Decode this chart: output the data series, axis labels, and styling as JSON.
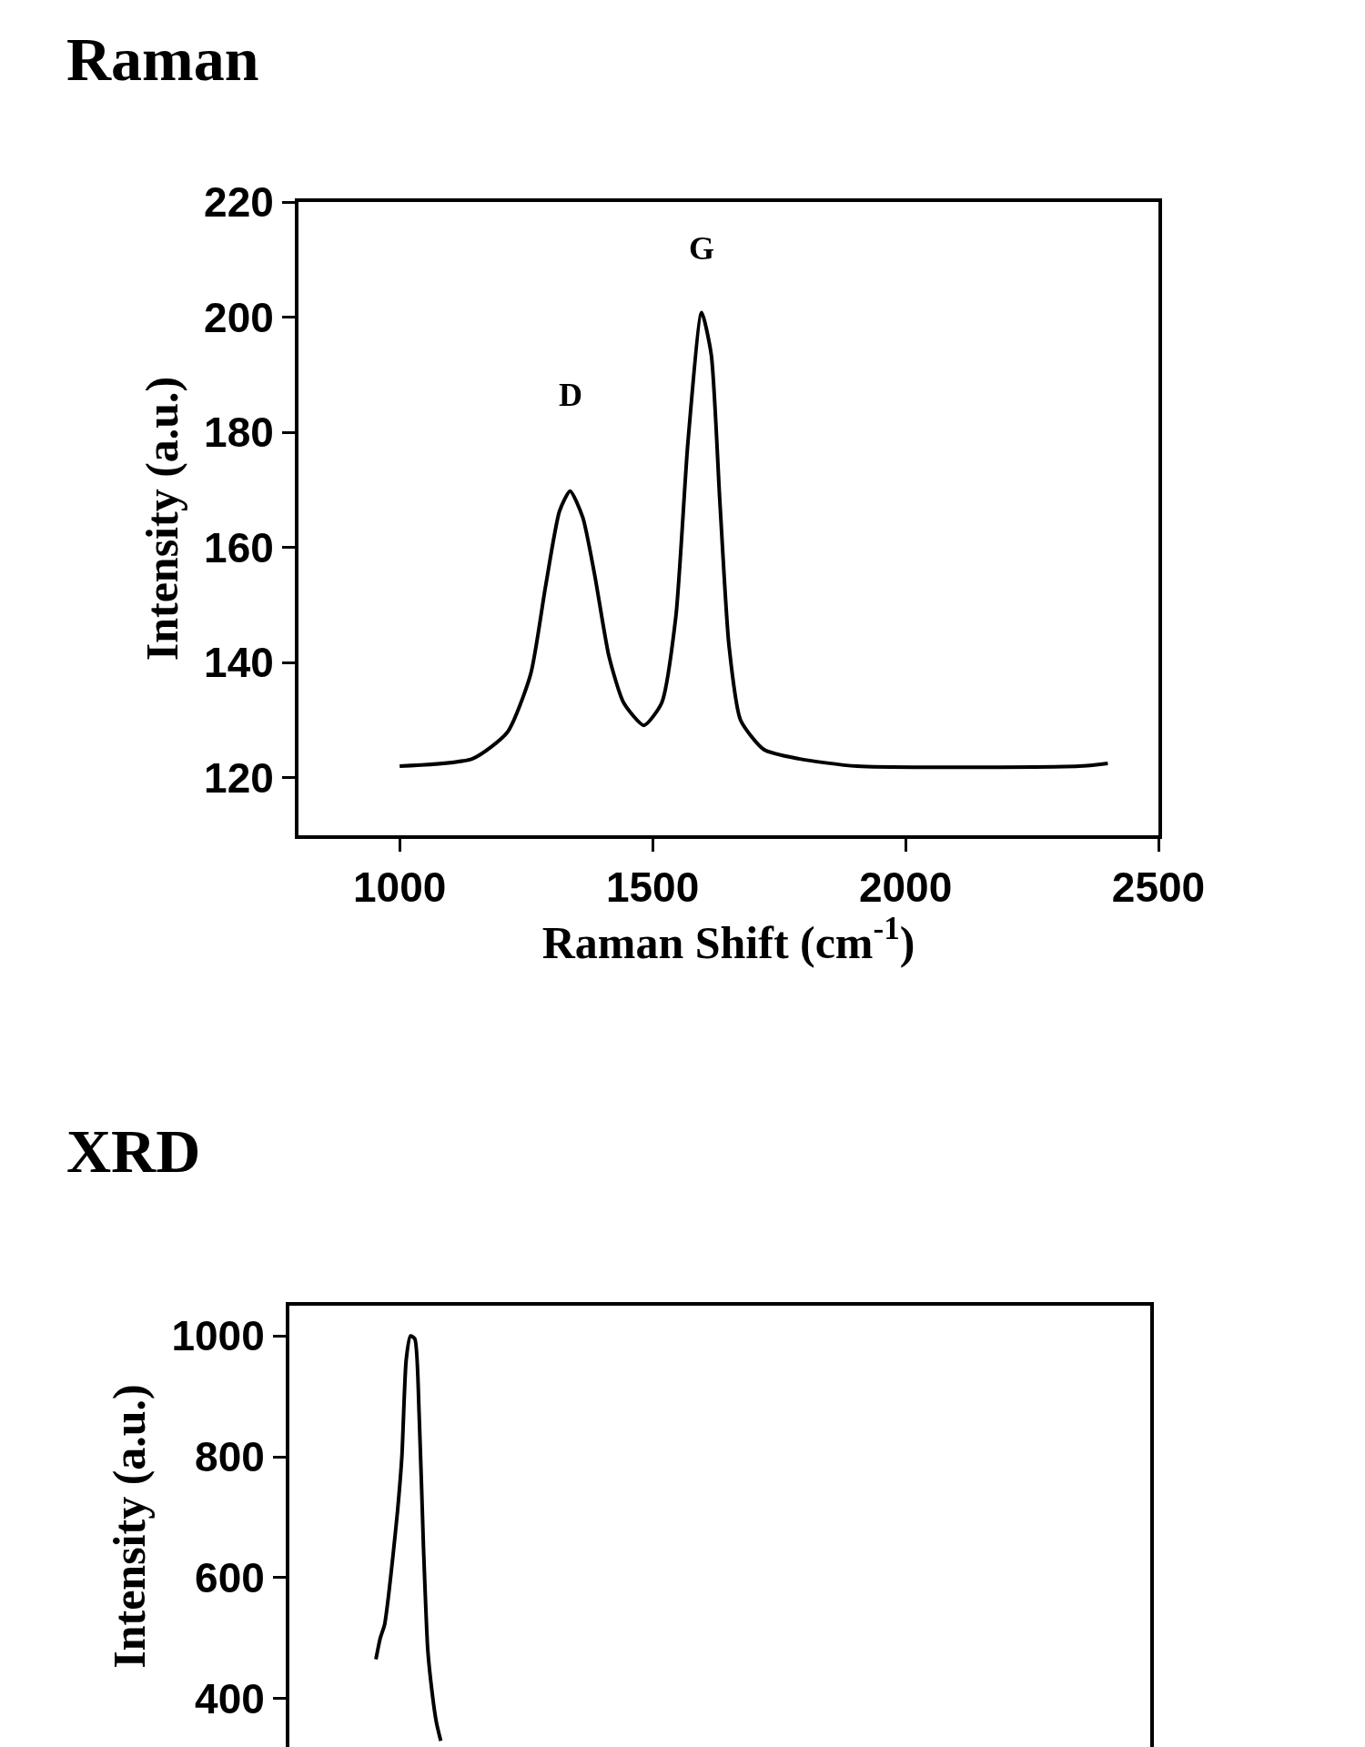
{
  "chart_data": [
    {
      "type": "line",
      "title": "Raman",
      "xlabel": "Raman Shift (cm$^{-1}$)",
      "ylabel": "Intensity (a.u.)",
      "color": "#000000",
      "x": [
        1000,
        1144,
        1213,
        1259,
        1288,
        1316,
        1337,
        1362,
        1386,
        1414,
        1443,
        1483,
        1518,
        1546,
        1570,
        1597,
        1616,
        1633,
        1651,
        1674,
        1720,
        1789,
        1904,
        2342,
        2400
      ],
      "values": [
        122,
        123.3,
        127.9,
        138,
        153,
        166.3,
        169.8,
        165.2,
        155,
        141,
        133,
        129.1,
        133,
        148,
        178.4,
        200.8,
        193.5,
        168,
        143,
        130,
        124.9,
        123.3,
        122,
        122,
        122.5
      ],
      "xlim": [
        800,
        2500
      ],
      "xticks": [
        1000,
        1500,
        2000,
        2500
      ],
      "ylim": [
        110,
        220
      ],
      "yticks": [
        120,
        140,
        160,
        180,
        200,
        220
      ],
      "annotations": [
        "D",
        "G"
      ]
    },
    {
      "type": "line",
      "title": "XRD",
      "ylabel": "Intensity (a.u.)",
      "color": "#000000",
      "tick_labels": "y",
      "ylim": [
        320,
        1050
      ],
      "yticks": [
        400,
        600,
        800,
        1000
      ],
      "categories": [
        null,
        null,
        null,
        null,
        null,
        null,
        null,
        null,
        null,
        null,
        null,
        null,
        null,
        null,
        null,
        null,
        null,
        null,
        null,
        null,
        null,
        null,
        null,
        null,
        null,
        null,
        null,
        null,
        null,
        null,
        null,
        null,
        null,
        null,
        null,
        null,
        null,
        null,
        null,
        null,
        null,
        null,
        null,
        null,
        null,
        null,
        null,
        null,
        null,
        null,
        null,
        null,
        null,
        null,
        null,
        null,
        null,
        null,
        null,
        null,
        null,
        null,
        null,
        null,
        null,
        null,
        null,
        null,
        null,
        null,
        null,
        null,
        null,
        null,
        null,
        null,
        null,
        null,
        null,
        null,
        null,
        null,
        null,
        null,
        null,
        null,
        null,
        null,
        null,
        null,
        null,
        null,
        null,
        null,
        null,
        null,
        null,
        null,
        null,
        null,
        null,
        null,
        null,
        null,
        null,
        null,
        null,
        null,
        null,
        null,
        null,
        null,
        null,
        null,
        null,
        null,
        null,
        null,
        null,
        null,
        null,
        null,
        null,
        null,
        null,
        null,
        null,
        null,
        null,
        null,
        null,
        null,
        null,
        null,
        null,
        null,
        null,
        null,
        null,
        null,
        null,
        null,
        null,
        null,
        null,
        null,
        null,
        null,
        null,
        null,
        null,
        null,
        null,
        null,
        null,
        null,
        null,
        null,
        null,
        null,
        null,
        null,
        null,
        null,
        null,
        null,
        null,
        null,
        null,
        null,
        null,
        null,
        null,
        null,
        null,
        null,
        null,
        null,
        null,
        null,
        null,
        null,
        null,
        null,
        null,
        null,
        null,
        null,
        null,
        null,
        null,
        null,
        null,
        null,
        null,
        null,
        null,
        null,
        null,
        null
      ],
      "values": [
        null,
        null,
        null,
        null,
        null,
        null,
        null,
        null,
        null,
        null,
        null,
        null,
        null,
        null,
        null,
        null,
        null,
        null,
        null,
        null,
        465,
        500,
        522,
        575,
        640,
        710,
        800,
        960,
        1000,
        995,
        870,
        650,
        480,
        410,
        360,
        330,
        null,
        null,
        null,
        null,
        null,
        null,
        null,
        null,
        null,
        null,
        null,
        null,
        null,
        null,
        null,
        null,
        null,
        null,
        null,
        null,
        null,
        null,
        null,
        null,
        null,
        null,
        null,
        null,
        null,
        null,
        null,
        null,
        null,
        null,
        null,
        null,
        null,
        null,
        null,
        null,
        null,
        null,
        null,
        null,
        null,
        null,
        null,
        null,
        null,
        null,
        null,
        null,
        null,
        null,
        null,
        null,
        null,
        null,
        null,
        null,
        null,
        null,
        null,
        null,
        null,
        null,
        null,
        null,
        null,
        null,
        null,
        null,
        null,
        null,
        null,
        null,
        null,
        null,
        null,
        null,
        null,
        null,
        null,
        null,
        null,
        null,
        null,
        null,
        null,
        null,
        null,
        null,
        null,
        null,
        null,
        null,
        null,
        null,
        null,
        null,
        null,
        null,
        null,
        null,
        null,
        null,
        null,
        null,
        null,
        null,
        null,
        null,
        null,
        null,
        null,
        null,
        null,
        null,
        null,
        null,
        null,
        null,
        null,
        null,
        null,
        null,
        null,
        null,
        null,
        null,
        null,
        null,
        null,
        null,
        null,
        null,
        null,
        null,
        null,
        null,
        null,
        null,
        null,
        null,
        null,
        null,
        null,
        null,
        null,
        null,
        null,
        null,
        null,
        null,
        null,
        null,
        null,
        null,
        null,
        null,
        null,
        null,
        null,
        null
      ]
    }
  ]
}
